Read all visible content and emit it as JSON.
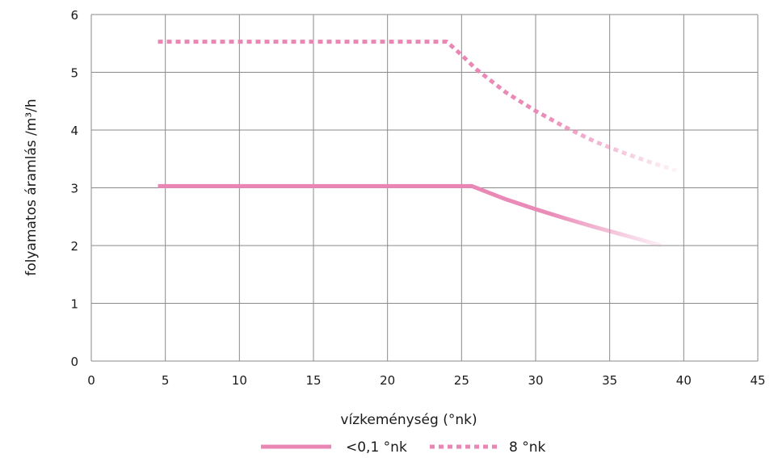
{
  "chart_data": {
    "type": "line",
    "xlabel": "vízkeménység (°nk)",
    "ylabel": "folyamatos áramlás /m³/h",
    "xlim": [
      0,
      45
    ],
    "ylim": [
      0,
      6
    ],
    "x_ticks": [
      "0",
      "5",
      "10",
      "15",
      "20",
      "25",
      "30",
      "35",
      "40",
      "45"
    ],
    "y_ticks": [
      "0",
      "1",
      "2",
      "3",
      "4",
      "5",
      "6"
    ],
    "grid": true,
    "legend_position": "bottom-center",
    "series": [
      {
        "name": "<0,1 °nk",
        "style": "solid",
        "color": "#e986b4",
        "x": [
          4.5,
          10,
          15,
          20,
          25.7,
          28,
          30,
          32,
          34,
          36,
          38.5
        ],
        "y": [
          3.03,
          3.03,
          3.03,
          3.03,
          3.03,
          2.8,
          2.63,
          2.47,
          2.32,
          2.18,
          2.0
        ]
      },
      {
        "name": "8 °nk",
        "style": "dashed",
        "color": "#e986b4",
        "x": [
          4.5,
          10,
          15,
          20,
          24,
          25,
          26,
          28,
          30,
          32,
          34,
          36,
          38,
          39.5
        ],
        "y": [
          5.53,
          5.53,
          5.53,
          5.53,
          5.53,
          5.3,
          5.05,
          4.65,
          4.33,
          4.05,
          3.8,
          3.6,
          3.42,
          3.3
        ]
      }
    ]
  }
}
